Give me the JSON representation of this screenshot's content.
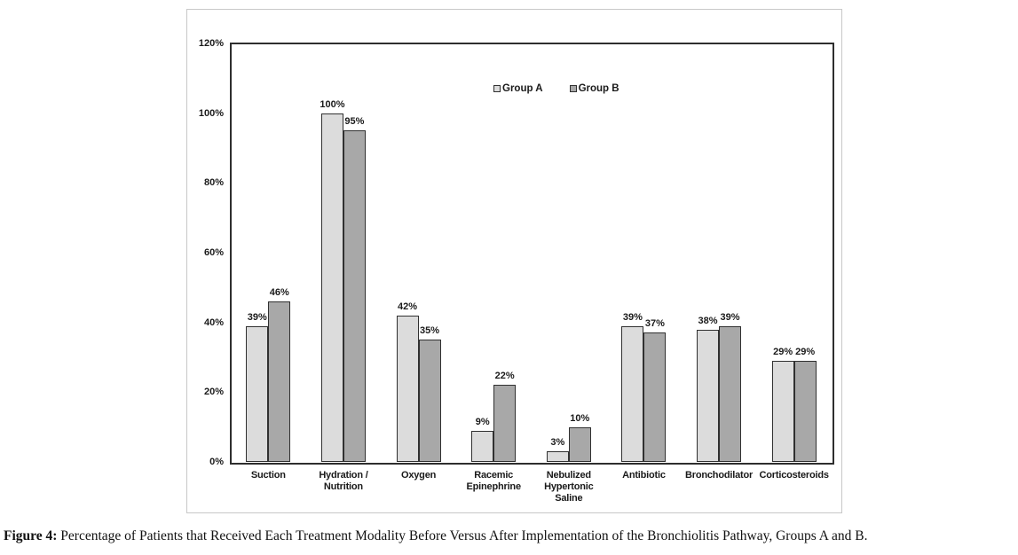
{
  "chart_data": {
    "type": "bar",
    "title": "",
    "xlabel": "",
    "ylabel": "",
    "categories": [
      "Suction",
      "Hydration /\nNutrition",
      "Oxygen",
      "Racemic\nEpinephrine",
      "Nebulized\nHypertonic\nSaline",
      "Antibiotic",
      "Bronchodilator",
      "Corticosteroids"
    ],
    "series": [
      {
        "name": "Group A",
        "color": "#dcdcdc",
        "values": [
          39,
          100,
          42,
          9,
          3,
          39,
          38,
          29
        ]
      },
      {
        "name": "Group B",
        "color": "#a8a8a8",
        "values": [
          46,
          95,
          35,
          22,
          10,
          37,
          39,
          29
        ]
      }
    ],
    "data_labels": true,
    "value_suffix": "%",
    "y_ticks": [
      0,
      20,
      40,
      60,
      80,
      100,
      120
    ],
    "y_tick_labels": [
      "0%",
      "20%",
      "40%",
      "60%",
      "80%",
      "100%",
      "120%"
    ],
    "ylim": [
      0,
      120
    ],
    "grid": false,
    "legend_position": "inside-top-center",
    "colors": {
      "bar_border": "#303030",
      "plot_frame": "#2e2e2e",
      "panel_border": "#c8c8c8",
      "text": "#1a1a1a"
    }
  },
  "caption": {
    "label": "Figure 4:",
    "text": " Percentage of Patients that Received Each Treatment Modality Before Versus After Implementation of the Bronchiolitis Pathway, Groups A and B."
  }
}
